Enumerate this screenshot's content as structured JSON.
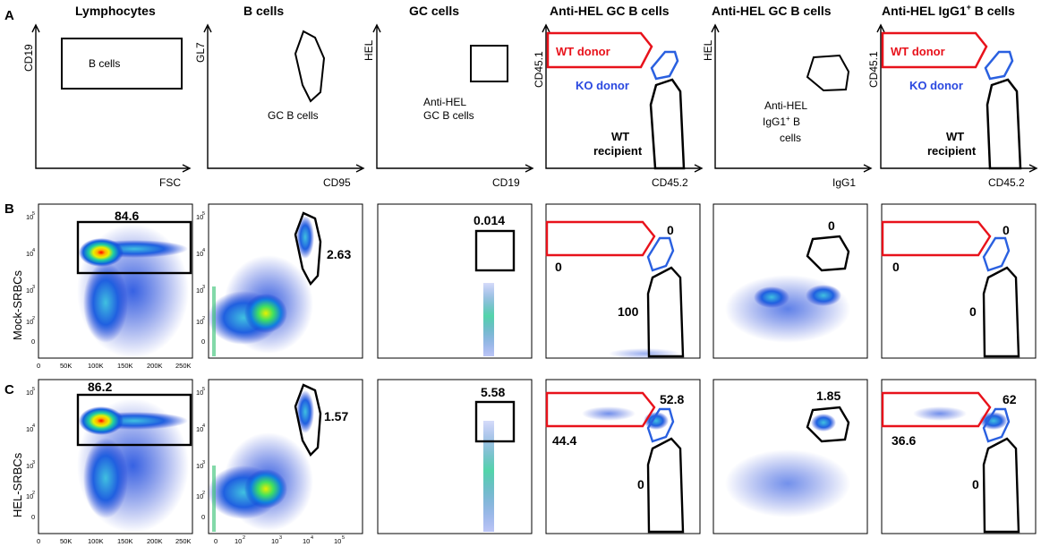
{
  "row_labels": {
    "A": "A",
    "B": "B",
    "C": "C"
  },
  "row_titles": {
    "B": "Mock-SRBCs",
    "C": "HEL-SRBCs"
  },
  "panel_titles": [
    {
      "text": "Lymphocytes"
    },
    {
      "text": "B cells"
    },
    {
      "text": "GC cells"
    },
    {
      "text": "Anti-HEL GC B cells"
    },
    {
      "text": "Anti-HEL GC B cells"
    },
    {
      "text": "Anti-HEL IgG1",
      "sup": "+",
      "tail": " B cells"
    }
  ],
  "schematic_axes": [
    {
      "y": "CD19",
      "x": "FSC"
    },
    {
      "y": "GL7",
      "x": "CD95"
    },
    {
      "y": "HEL",
      "x": "CD19"
    },
    {
      "y": "CD45.1",
      "x": "CD45.2"
    },
    {
      "y": "HEL",
      "x": "IgG1"
    },
    {
      "y": "CD45.1",
      "x": "CD45.2"
    }
  ],
  "gate_labels": {
    "b_cells": "B cells",
    "gc_b_cells": "GC B cells",
    "anti_hel_gc": [
      "Anti-HEL",
      "GC B cells"
    ],
    "wt_donor": "WT donor",
    "ko_donor": "KO donor",
    "wt_recipient": [
      "WT",
      "recipient"
    ],
    "anti_hel_igg1": [
      "Anti-HEL",
      "IgG1",
      "+",
      " B",
      "cells"
    ]
  },
  "colors": {
    "wt_gate": "#e8121b",
    "ko_gate": "#2a48e0",
    "gate": "#000000"
  },
  "axis_ticks": {
    "fsc_x": [
      "0",
      "50K",
      "100K",
      "150K",
      "200K",
      "250K"
    ],
    "log_y": [
      "10",
      "5",
      "10",
      "4",
      "10",
      "3",
      "10",
      "2",
      "0"
    ],
    "cd95_x": [
      "0",
      "10",
      "2",
      "10",
      "3",
      "10",
      "4",
      "10",
      "5"
    ]
  },
  "gate_values": {
    "B": [
      "84.6",
      "2.63",
      "0.014",
      "0",
      "0",
      "100",
      "0",
      "0",
      "0"
    ],
    "C": [
      "86.2",
      "1.57",
      "5.58",
      "52.8",
      "44.4",
      "0",
      "1.85",
      "62",
      "36.6",
      "0"
    ]
  }
}
